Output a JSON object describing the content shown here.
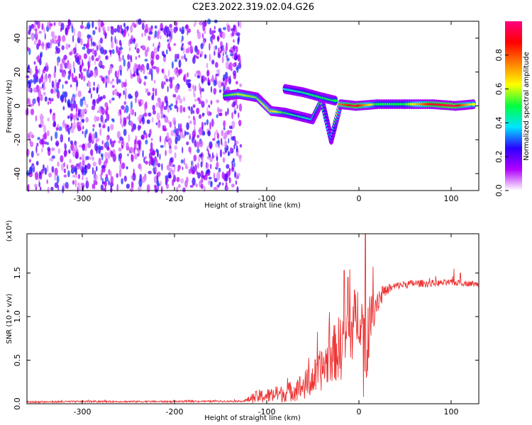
{
  "title": "C2E3.2022.319.02.04.G26",
  "chart_data": [
    {
      "type": "heatmap",
      "title": "C2E3.2022.319.02.04.G26",
      "xlabel": "Height of straight line (km)",
      "ylabel": "Frequency (Hz)",
      "xlim": [
        -360,
        130
      ],
      "ylim": [
        -50,
        50
      ],
      "x_ticks": [
        -300,
        -200,
        -100,
        0,
        100
      ],
      "y_ticks": [
        -40,
        -20,
        0,
        20,
        40
      ],
      "colorbar": {
        "label": "Normalized spectral amplitude",
        "range": [
          0,
          1
        ],
        "ticks": [
          "0.0",
          "0.2",
          "0.4",
          "0.6",
          "0.8"
        ],
        "colors": [
          "#ffffff",
          "#b200ff",
          "#2a00ff",
          "#00e5ff",
          "#00ff40",
          "#ffff00",
          "#ff8000",
          "#ff0000",
          "#ff0080"
        ]
      },
      "noise_region": {
        "x_range": [
          -360,
          -128
        ],
        "freq_range": [
          -50,
          50
        ],
        "level_range": [
          0.05,
          0.3
        ]
      },
      "ridge": [
        {
          "x": -145,
          "f": 6,
          "a": 0.5
        },
        {
          "x": -130,
          "f": 7,
          "a": 0.6
        },
        {
          "x": -110,
          "f": 5,
          "a": 0.55
        },
        {
          "x": -95,
          "f": -3,
          "a": 0.7
        },
        {
          "x": -80,
          "f": -4,
          "a": 0.5
        },
        {
          "x": -65,
          "f": -6,
          "a": 0.45
        },
        {
          "x": -50,
          "f": -8,
          "a": 0.4
        },
        {
          "x": -40,
          "f": 3,
          "a": 0.55
        },
        {
          "x": -30,
          "f": -20,
          "a": 0.3
        },
        {
          "x": -20,
          "f": 1,
          "a": 0.75
        },
        {
          "x": -3,
          "f": 0,
          "a": 0.95
        },
        {
          "x": 20,
          "f": 1,
          "a": 0.5
        },
        {
          "x": 50,
          "f": 1,
          "a": 0.5
        },
        {
          "x": 80,
          "f": 1,
          "a": 0.9
        },
        {
          "x": 105,
          "f": 0,
          "a": 0.95
        },
        {
          "x": 125,
          "f": 1,
          "a": 0.6
        }
      ],
      "upper_branch": [
        {
          "x": -80,
          "f": 10,
          "a": 0.4
        },
        {
          "x": -60,
          "f": 8,
          "a": 0.45
        },
        {
          "x": -40,
          "f": 5,
          "a": 0.5
        },
        {
          "x": -25,
          "f": 3,
          "a": 0.5
        }
      ]
    },
    {
      "type": "line",
      "series_color": "#ee3333",
      "xlabel": "Height of straight line (km)",
      "ylabel": "SNR (10 * v/v)",
      "y_scale_label": "(x10⁴)",
      "xlim": [
        -360,
        130
      ],
      "ylim": [
        0,
        1.95
      ],
      "x_ticks": [
        -300,
        -200,
        -100,
        0,
        100
      ],
      "y_ticks": [
        "0.0",
        "0.5",
        "1.0",
        "1.5"
      ],
      "y_tick_values": [
        0,
        0.5,
        1.0,
        1.5
      ],
      "envelope": {
        "x": [
          -360,
          -300,
          -200,
          -125,
          -110,
          -100,
          -80,
          -60,
          -50,
          -40,
          -30,
          -20,
          -15,
          -10,
          -5,
          0,
          5,
          8,
          12,
          20,
          30,
          40,
          50,
          60,
          80,
          100,
          120,
          130
        ],
        "y": [
          0.02,
          0.025,
          0.025,
          0.03,
          0.08,
          0.09,
          0.12,
          0.2,
          0.28,
          0.4,
          0.55,
          0.65,
          0.75,
          0.8,
          0.95,
          1.05,
          0.9,
          0.4,
          1.0,
          1.2,
          1.3,
          1.35,
          1.37,
          1.38,
          1.38,
          1.39,
          1.38,
          1.37
        ]
      },
      "noise_amplitude": {
        "x": [
          -360,
          -125,
          -110,
          -80,
          -50,
          -30,
          -15,
          0,
          10,
          30,
          130
        ],
        "y": [
          0.01,
          0.01,
          0.08,
          0.1,
          0.2,
          0.3,
          0.45,
          0.35,
          0.3,
          0.05,
          0.03
        ]
      },
      "spikes": [
        {
          "x": -16,
          "y": 1.53
        },
        {
          "x": -12,
          "y": 1.45
        },
        {
          "x": 7,
          "y": 1.95
        },
        {
          "x": 5,
          "y": 0.08
        },
        {
          "x": 103,
          "y": 1.55
        },
        {
          "x": 110,
          "y": 1.5
        }
      ]
    }
  ]
}
